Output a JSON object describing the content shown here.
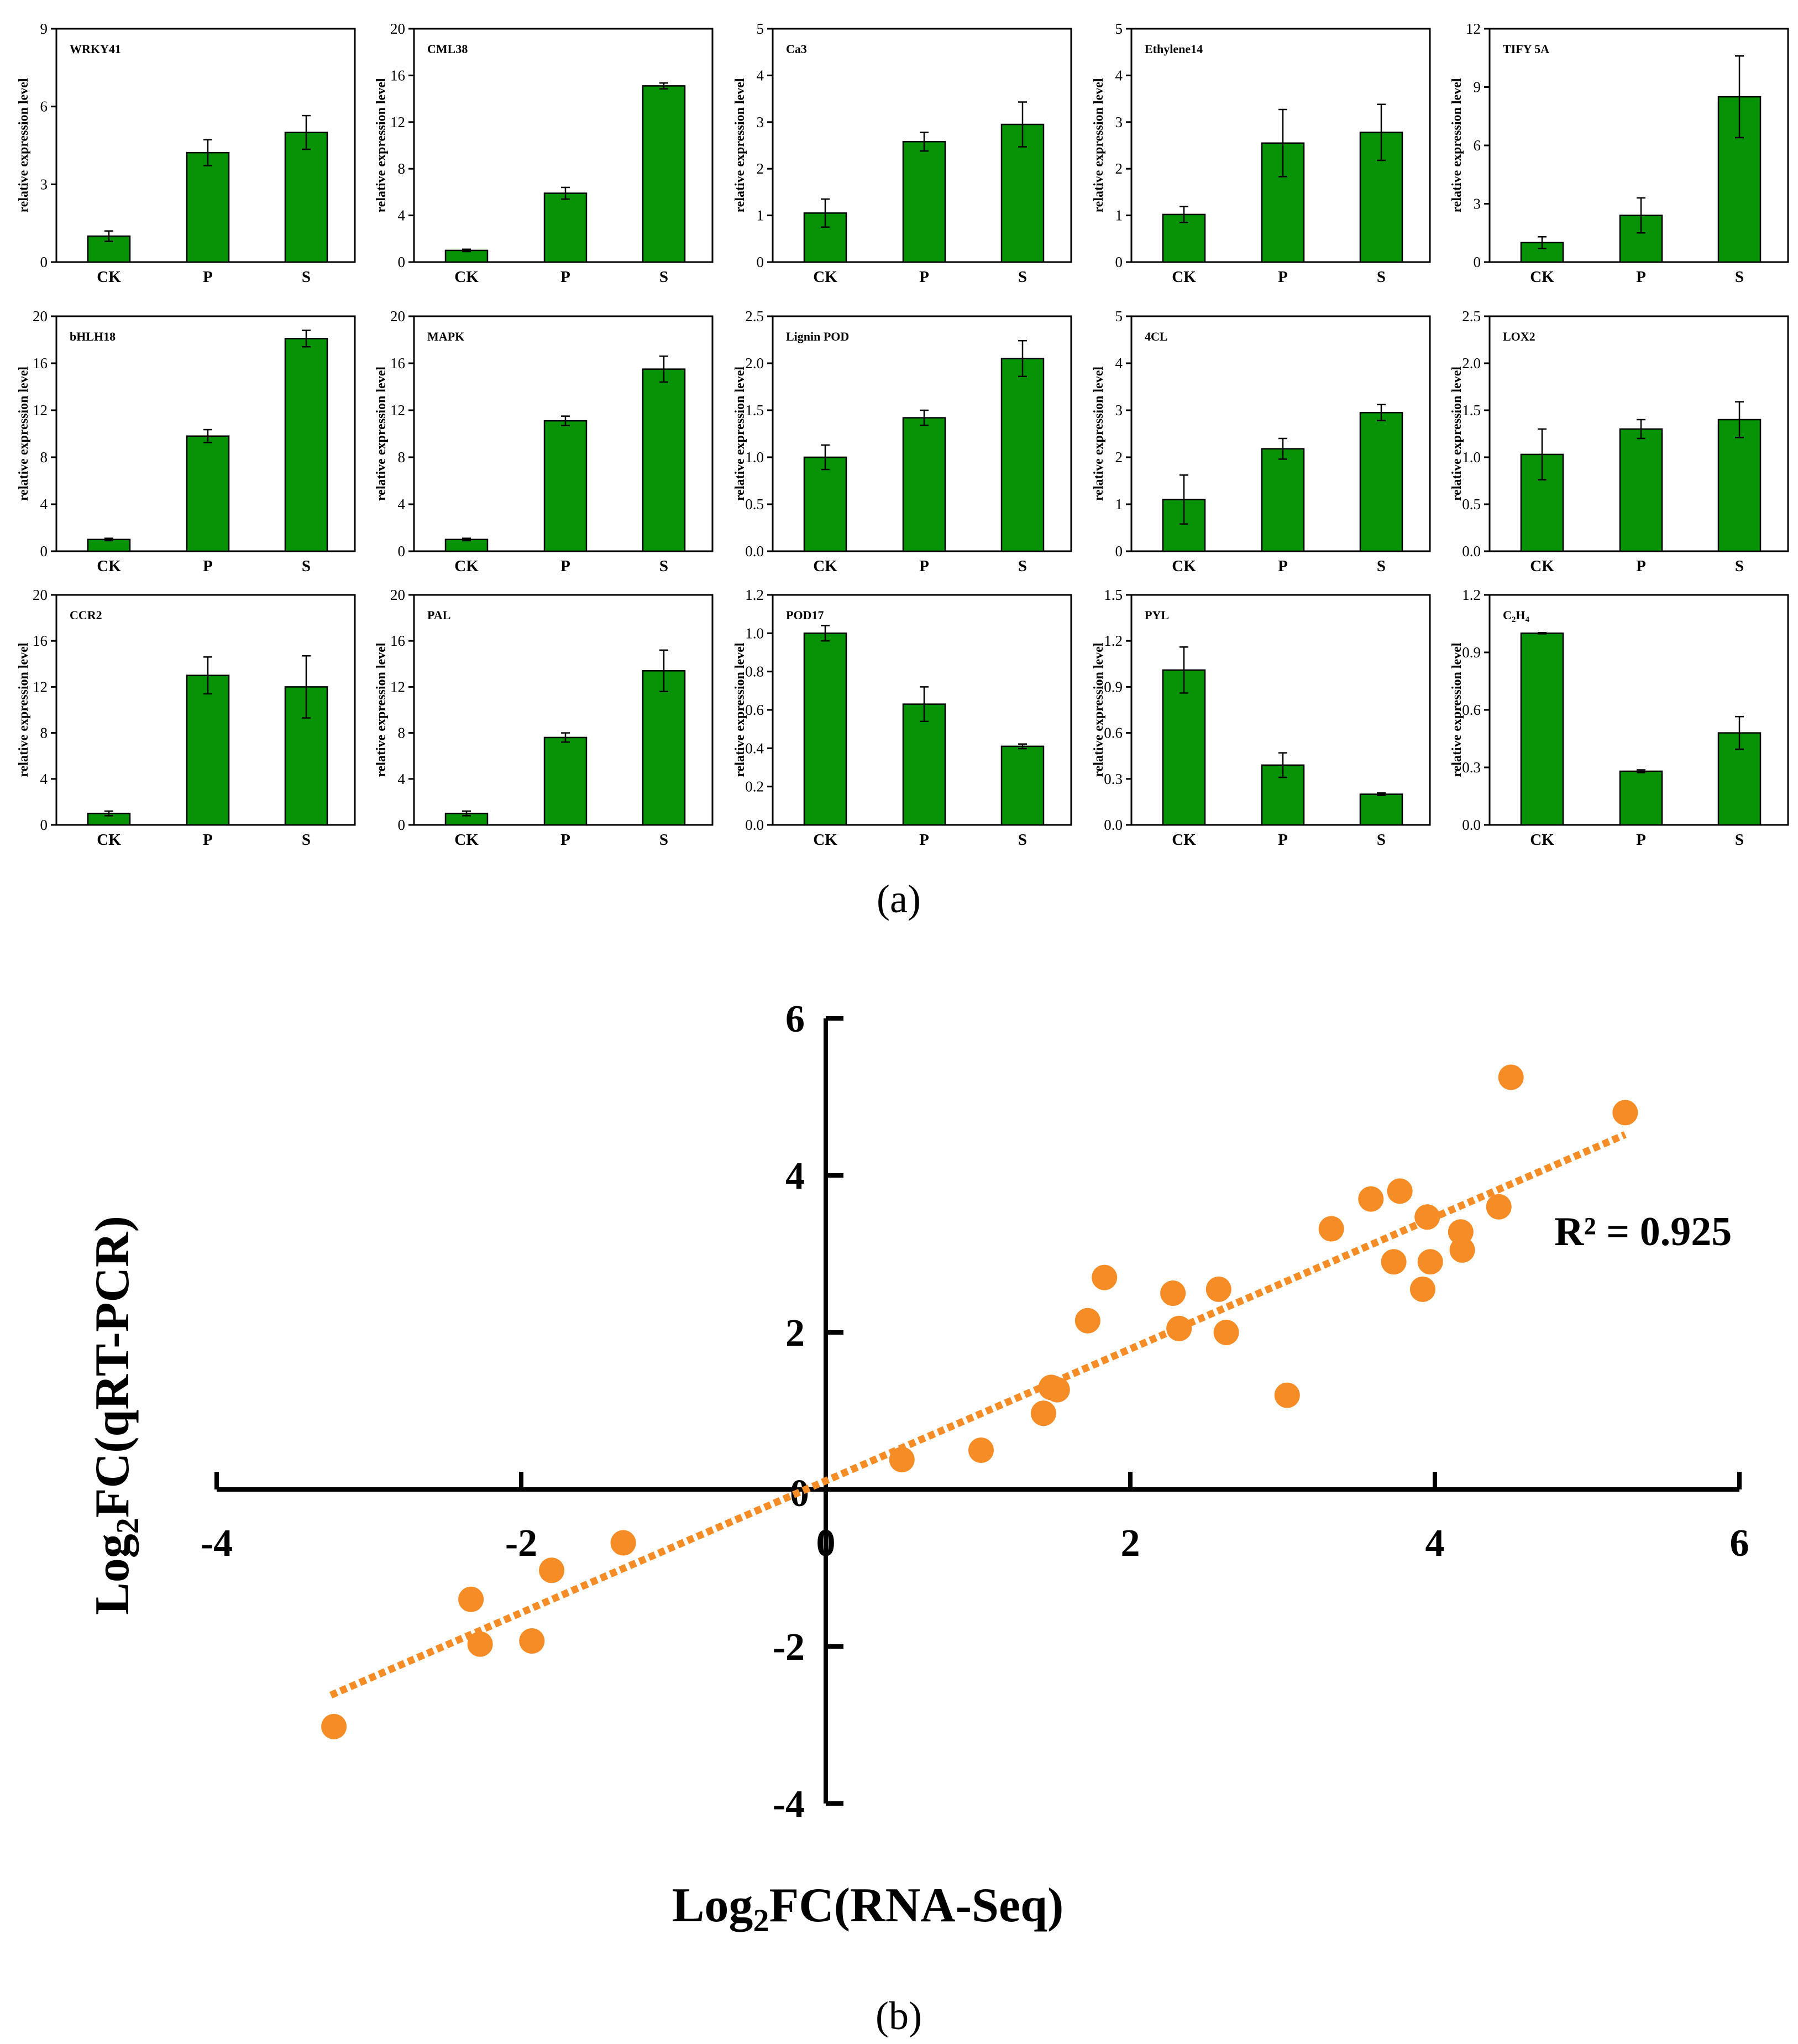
{
  "panel_labels": {
    "a": "(a)",
    "b": "(b)"
  },
  "bar_style": {
    "fill": "#069306",
    "stroke": "#000000"
  },
  "scatter_style": {
    "point_color": "#f68c25",
    "trend_color": "#f68c25"
  },
  "chart_data": [
    {
      "type": "bar",
      "title": "WRKY41",
      "ylabel": "relative expression level",
      "categories": [
        "CK",
        "P",
        "S"
      ],
      "values": [
        1.0,
        4.22,
        5.0
      ],
      "errors": [
        0.2,
        0.5,
        0.65
      ],
      "ylim": [
        0,
        9
      ],
      "yticks": [
        0,
        3,
        6,
        9
      ]
    },
    {
      "type": "bar",
      "title": "CML38",
      "ylabel": "relative expression level",
      "categories": [
        "CK",
        "P",
        "S"
      ],
      "values": [
        1.0,
        5.9,
        15.1
      ],
      "errors": [
        0.1,
        0.5,
        0.25
      ],
      "ylim": [
        0,
        20
      ],
      "yticks": [
        0,
        4,
        8,
        12,
        16,
        20
      ]
    },
    {
      "type": "bar",
      "title": "Ca3",
      "ylabel": "relative expression level",
      "categories": [
        "CK",
        "P",
        "S"
      ],
      "values": [
        1.05,
        2.58,
        2.95
      ],
      "errors": [
        0.3,
        0.2,
        0.48
      ],
      "ylim": [
        0,
        5
      ],
      "yticks": [
        0,
        1,
        2,
        3,
        4,
        5
      ]
    },
    {
      "type": "bar",
      "title": "Ethylene14",
      "ylabel": "relative expression level",
      "categories": [
        "CK",
        "P",
        "S"
      ],
      "values": [
        1.02,
        2.55,
        2.78
      ],
      "errors": [
        0.17,
        0.72,
        0.6
      ],
      "ylim": [
        0,
        5
      ],
      "yticks": [
        0,
        1,
        2,
        3,
        4,
        5
      ]
    },
    {
      "type": "bar",
      "title": "TIFY 5A",
      "ylabel": "relative expression level",
      "categories": [
        "CK",
        "P",
        "S"
      ],
      "values": [
        1.0,
        2.4,
        8.5
      ],
      "errors": [
        0.3,
        0.9,
        2.1
      ],
      "ylim": [
        0,
        12
      ],
      "yticks": [
        0,
        3,
        6,
        9,
        12
      ]
    },
    {
      "type": "bar",
      "title": "bHLH18",
      "ylabel": "relative expression level",
      "categories": [
        "CK",
        "P",
        "S"
      ],
      "values": [
        1.0,
        9.8,
        18.1
      ],
      "errors": [
        0.1,
        0.55,
        0.7
      ],
      "ylim": [
        0,
        20
      ],
      "yticks": [
        0,
        4,
        8,
        12,
        16,
        20
      ]
    },
    {
      "type": "bar",
      "title": "MAPK",
      "ylabel": "relative expression level",
      "categories": [
        "CK",
        "P",
        "S"
      ],
      "values": [
        1.0,
        11.1,
        15.5
      ],
      "errors": [
        0.1,
        0.4,
        1.1
      ],
      "ylim": [
        0,
        20
      ],
      "yticks": [
        0,
        4,
        8,
        12,
        16,
        20
      ]
    },
    {
      "type": "bar",
      "title": "Lignin POD",
      "ylabel": "relative expression level",
      "categories": [
        "CK",
        "P",
        "S"
      ],
      "values": [
        1.0,
        1.42,
        2.05
      ],
      "errors": [
        0.13,
        0.08,
        0.19
      ],
      "ylim": [
        0,
        2.5
      ],
      "yticks": [
        "0.0",
        "0.5",
        "1.0",
        "1.5",
        "2.0",
        "2.5"
      ]
    },
    {
      "type": "bar",
      "title": "4CL",
      "ylabel": "relative expression level",
      "categories": [
        "CK",
        "P",
        "S"
      ],
      "values": [
        1.1,
        2.18,
        2.95
      ],
      "errors": [
        0.52,
        0.22,
        0.17
      ],
      "ylim": [
        0,
        5
      ],
      "yticks": [
        0,
        1,
        2,
        3,
        4,
        5
      ]
    },
    {
      "type": "bar",
      "title": "LOX2",
      "ylabel": "relative expression level",
      "categories": [
        "CK",
        "P",
        "S"
      ],
      "values": [
        1.03,
        1.3,
        1.4
      ],
      "errors": [
        0.27,
        0.1,
        0.19
      ],
      "ylim": [
        0,
        2.5
      ],
      "yticks": [
        "0.0",
        "0.5",
        "1.0",
        "1.5",
        "2.0",
        "2.5"
      ]
    },
    {
      "type": "bar",
      "title": "CCR2",
      "ylabel": "relative expression level",
      "categories": [
        "CK",
        "P",
        "S"
      ],
      "values": [
        1.0,
        13.0,
        12.0
      ],
      "errors": [
        0.2,
        1.6,
        2.7
      ],
      "ylim": [
        0,
        20
      ],
      "yticks": [
        0,
        4,
        8,
        12,
        16,
        20
      ]
    },
    {
      "type": "bar",
      "title": "PAL",
      "ylabel": "relative expression level",
      "categories": [
        "CK",
        "P",
        "S"
      ],
      "values": [
        1.0,
        7.6,
        13.4
      ],
      "errors": [
        0.2,
        0.4,
        1.8
      ],
      "ylim": [
        0,
        20
      ],
      "yticks": [
        0,
        4,
        8,
        12,
        16,
        20
      ]
    },
    {
      "type": "bar",
      "title": "POD17",
      "ylabel": "relative expression level",
      "categories": [
        "CK",
        "P",
        "S"
      ],
      "values": [
        1.0,
        0.63,
        0.41
      ],
      "errors": [
        0.04,
        0.09,
        0.012
      ],
      "ylim": [
        0,
        1.2
      ],
      "yticks": [
        "0.0",
        "0.2",
        "0.4",
        "0.6",
        "0.8",
        "1.0",
        "1.2"
      ]
    },
    {
      "type": "bar",
      "title": "PYL",
      "ylabel": "relative expression level",
      "categories": [
        "CK",
        "P",
        "S"
      ],
      "values": [
        1.01,
        0.39,
        0.2
      ],
      "errors": [
        0.15,
        0.08,
        0.008
      ],
      "ylim": [
        0,
        1.5
      ],
      "yticks": [
        "0.0",
        "0.3",
        "0.6",
        "0.9",
        "1.2",
        "1.5"
      ]
    },
    {
      "type": "bar",
      "title": "C2H4",
      "title_main": "C",
      "title_sub1": "2",
      "title_mid": "H",
      "title_sub2": "4",
      "ylabel": "relative expression level",
      "categories": [
        "CK",
        "P",
        "S"
      ],
      "values": [
        1.0,
        0.28,
        0.48
      ],
      "errors": [
        0.003,
        0.007,
        0.085
      ],
      "ylim": [
        0,
        1.2
      ],
      "yticks": [
        "0.0",
        "0.3",
        "0.6",
        "0.9",
        "1.2"
      ]
    },
    {
      "type": "scatter",
      "xlabel_prefix": "Log",
      "xlabel_sub": "2",
      "xlabel_suffix": "FC(RNA-Seq)",
      "ylabel_prefix": "Log",
      "ylabel_sub": "2",
      "ylabel_suffix": "FC(qRT-PCR)",
      "annotation": "R² = 0.925",
      "xlim": [
        -4,
        6
      ],
      "ylim": [
        -4,
        6
      ],
      "xticks": [
        -4,
        -2,
        0,
        2,
        4,
        6
      ],
      "yticks": [
        -4,
        -2,
        0,
        2,
        4,
        6
      ],
      "trendline": {
        "x": [
          -3.25,
          5.25
        ],
        "y": [
          -2.62,
          4.52
        ]
      },
      "points": [
        [
          -3.23,
          -3.02
        ],
        [
          -2.33,
          -1.4
        ],
        [
          -2.27,
          -1.97
        ],
        [
          -1.93,
          -1.93
        ],
        [
          -1.8,
          -1.03
        ],
        [
          -1.33,
          -0.68
        ],
        [
          0.5,
          0.38
        ],
        [
          1.02,
          0.5
        ],
        [
          1.43,
          0.97
        ],
        [
          1.48,
          1.3
        ],
        [
          1.52,
          1.27
        ],
        [
          1.72,
          2.15
        ],
        [
          1.83,
          2.7
        ],
        [
          2.28,
          2.5
        ],
        [
          2.32,
          2.05
        ],
        [
          2.58,
          2.55
        ],
        [
          2.63,
          2.0
        ],
        [
          3.03,
          1.2
        ],
        [
          3.32,
          3.32
        ],
        [
          3.58,
          3.7
        ],
        [
          3.73,
          2.9
        ],
        [
          3.77,
          3.8
        ],
        [
          3.92,
          2.55
        ],
        [
          3.95,
          3.47
        ],
        [
          3.97,
          2.9
        ],
        [
          4.17,
          3.28
        ],
        [
          4.18,
          3.05
        ],
        [
          4.42,
          3.6
        ],
        [
          4.5,
          5.25
        ],
        [
          5.25,
          4.8
        ]
      ]
    }
  ]
}
